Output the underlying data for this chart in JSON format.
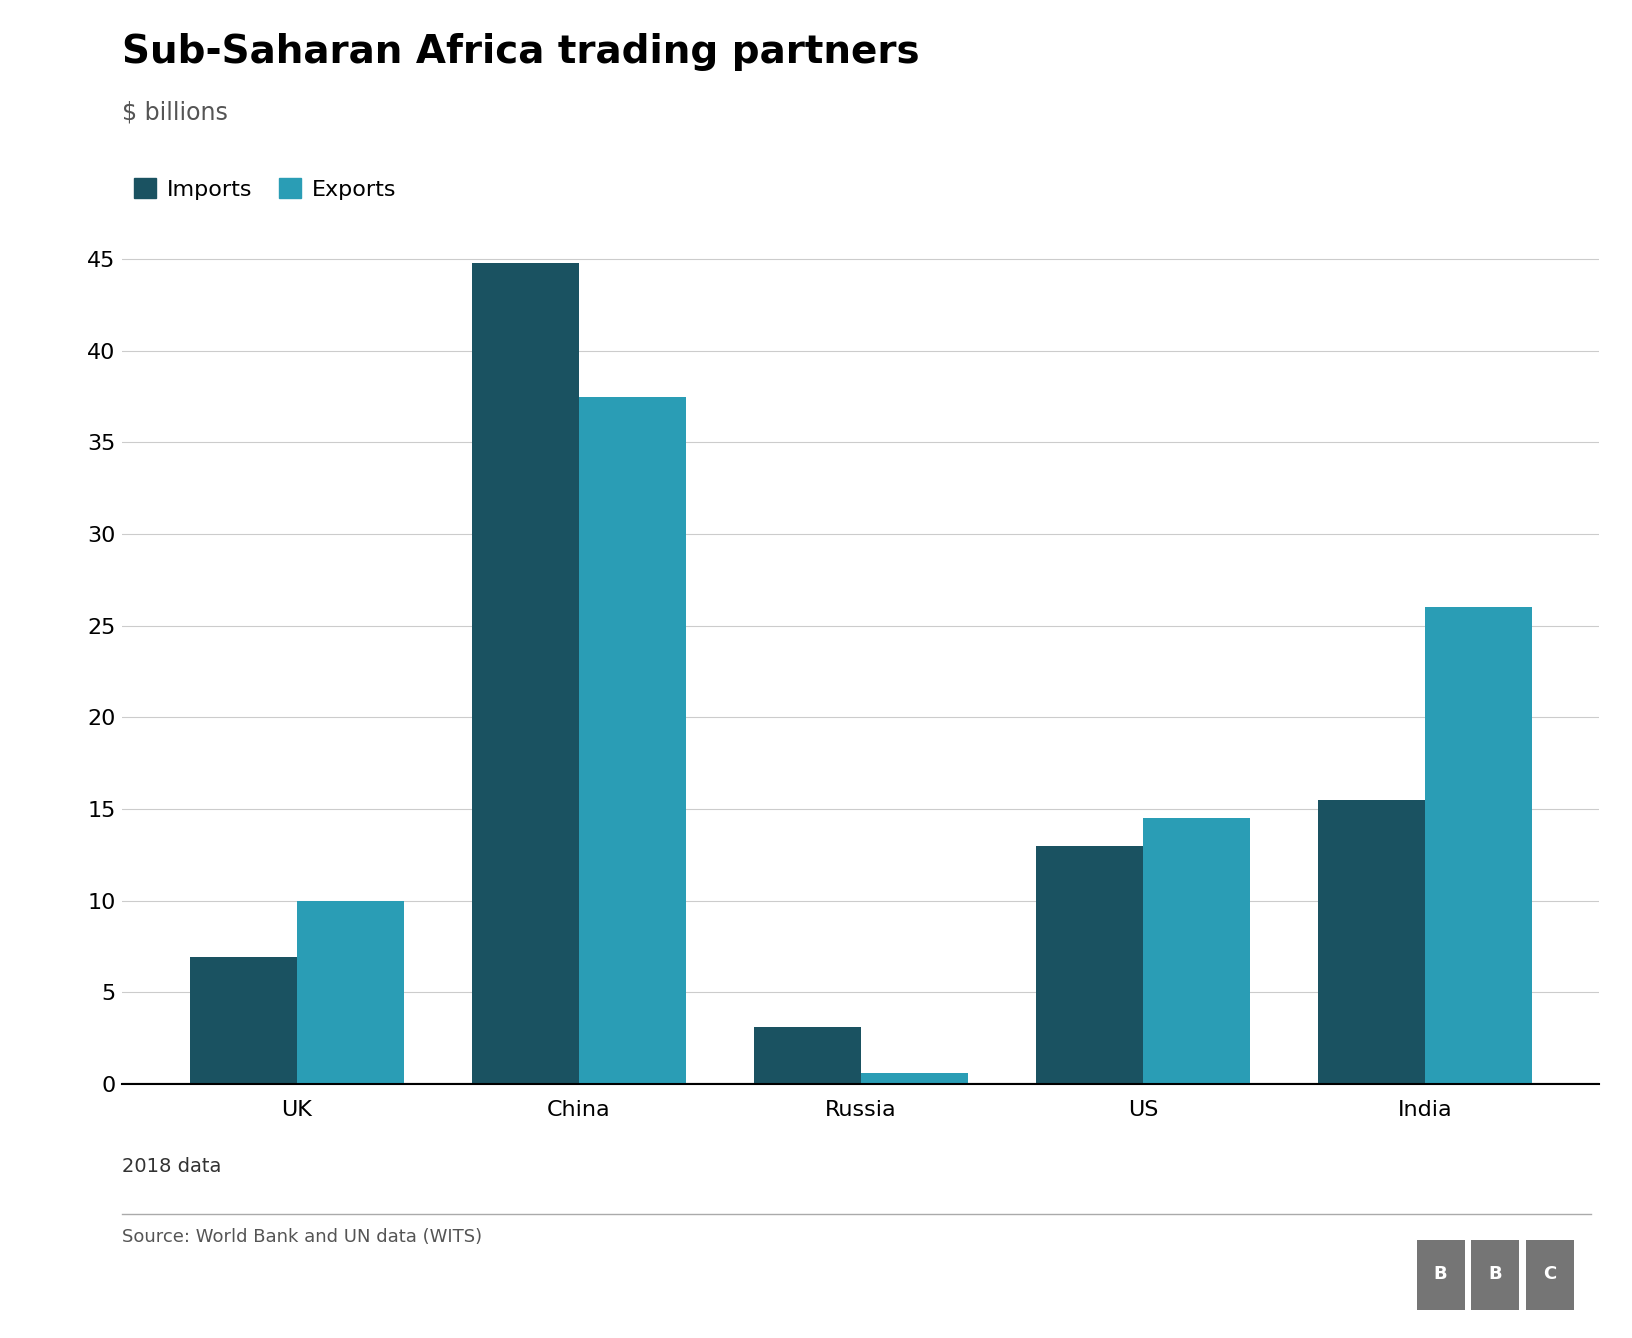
{
  "title": "Sub-Saharan Africa trading partners",
  "subtitle": "$ billions",
  "footnote": "2018 data",
  "source": "Source: World Bank and UN data (WITS)",
  "categories": [
    "UK",
    "China",
    "Russia",
    "US",
    "India"
  ],
  "imports": [
    6.9,
    44.8,
    3.1,
    13.0,
    15.5
  ],
  "exports": [
    10.0,
    37.5,
    0.6,
    14.5,
    26.0
  ],
  "imports_color": "#1a5261",
  "exports_color": "#2a9db5",
  "ylim": [
    0,
    46
  ],
  "yticks": [
    0,
    5,
    10,
    15,
    20,
    25,
    30,
    35,
    40,
    45
  ],
  "bar_width": 0.38,
  "background_color": "#ffffff",
  "title_fontsize": 28,
  "subtitle_fontsize": 17,
  "tick_fontsize": 16,
  "legend_fontsize": 16,
  "footnote_fontsize": 14,
  "source_fontsize": 13,
  "bbc_box_color": "#757575",
  "bbc_text_color": "#ffffff"
}
